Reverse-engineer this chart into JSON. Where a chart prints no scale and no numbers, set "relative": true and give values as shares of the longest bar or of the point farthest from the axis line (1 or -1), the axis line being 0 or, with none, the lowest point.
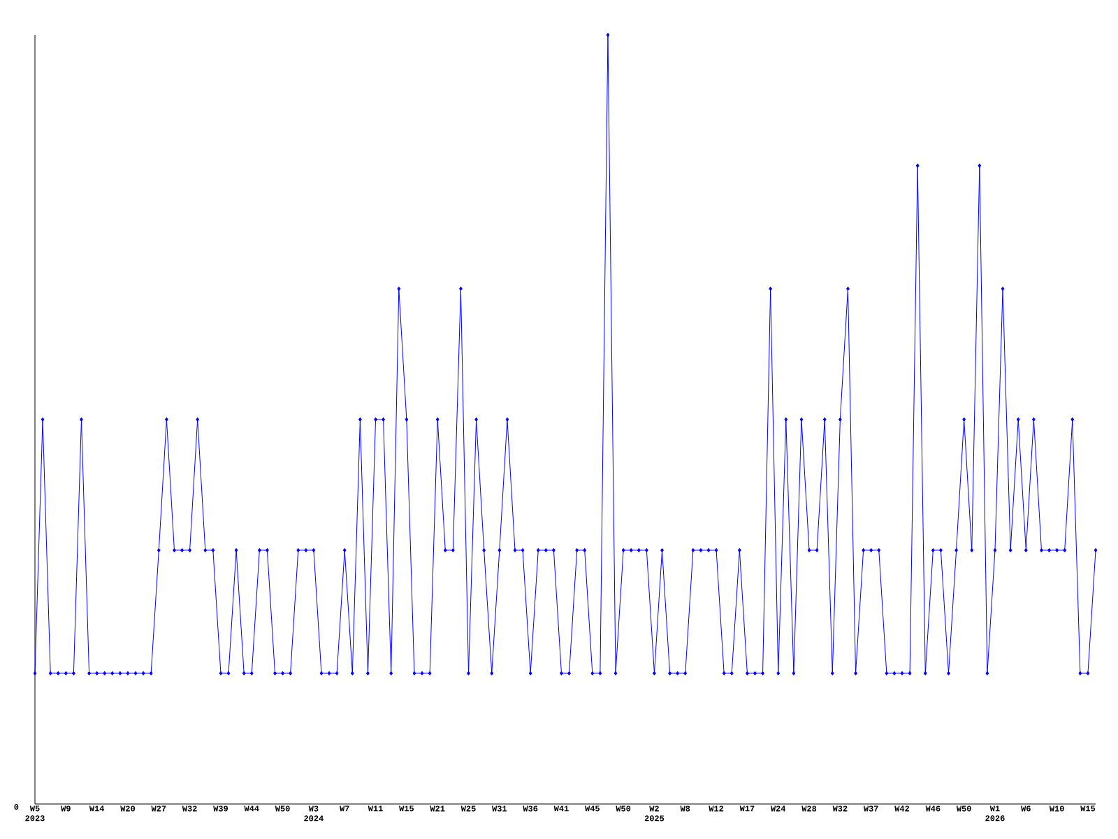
{
  "chart_data": {
    "type": "line",
    "relative": true,
    "marker": "diamond",
    "color": "#0000ff",
    "annotations": [
      "0"
    ],
    "categories": [
      "W5 2023",
      null,
      null,
      null,
      "W9",
      null,
      null,
      null,
      "W14",
      null,
      null,
      null,
      "W20",
      null,
      null,
      null,
      "W27",
      null,
      null,
      null,
      "W32",
      null,
      null,
      null,
      "W39",
      null,
      null,
      null,
      "W44",
      null,
      null,
      null,
      "W50",
      null,
      null,
      null,
      "W3 2024",
      null,
      null,
      null,
      "W7",
      null,
      null,
      null,
      "W11",
      null,
      null,
      null,
      "W15",
      null,
      null,
      null,
      "W21",
      null,
      null,
      null,
      "W25",
      null,
      null,
      null,
      "W31",
      null,
      null,
      null,
      "W36",
      null,
      null,
      null,
      "W41",
      null,
      null,
      null,
      "W45",
      null,
      null,
      null,
      "W50",
      null,
      null,
      null,
      "W2 2025",
      null,
      null,
      null,
      "W8",
      null,
      null,
      null,
      "W12",
      null,
      null,
      null,
      "W17",
      null,
      null,
      null,
      "W24",
      null,
      null,
      null,
      "W28",
      null,
      null,
      null,
      "W32",
      null,
      null,
      null,
      "W37",
      null,
      null,
      null,
      "W42",
      null,
      null,
      null,
      "W46",
      null,
      null,
      null,
      "W50",
      null,
      null,
      null,
      "W1 2026",
      null,
      null,
      null,
      "W6",
      null,
      null,
      null,
      "W10",
      null,
      null,
      null,
      "W15",
      null
    ],
    "values": [
      0.17,
      0.5,
      0.17,
      0.17,
      0.17,
      0.17,
      0.5,
      0.17,
      0.17,
      0.17,
      0.17,
      0.17,
      0.17,
      0.17,
      0.17,
      0.17,
      0.33,
      0.5,
      0.33,
      0.33,
      0.33,
      0.5,
      0.33,
      0.33,
      0.17,
      0.17,
      0.33,
      0.17,
      0.17,
      0.33,
      0.33,
      0.17,
      0.17,
      0.17,
      0.33,
      0.33,
      0.33,
      0.17,
      0.17,
      0.17,
      0.33,
      0.17,
      0.5,
      0.17,
      0.5,
      0.5,
      0.17,
      0.67,
      0.5,
      0.17,
      0.17,
      0.17,
      0.5,
      0.33,
      0.33,
      0.67,
      0.17,
      0.5,
      0.33,
      0.17,
      0.33,
      0.5,
      0.33,
      0.33,
      0.17,
      0.33,
      0.33,
      0.33,
      0.17,
      0.17,
      0.33,
      0.33,
      0.17,
      0.17,
      1,
      0.17,
      0.33,
      0.33,
      0.33,
      0.33,
      0.17,
      0.33,
      0.17,
      0.17,
      0.17,
      0.33,
      0.33,
      0.33,
      0.33,
      0.17,
      0.17,
      0.33,
      0.17,
      0.17,
      0.17,
      0.67,
      0.17,
      0.5,
      0.17,
      0.5,
      0.33,
      0.33,
      0.5,
      0.17,
      0.5,
      0.67,
      0.17,
      0.33,
      0.33,
      0.33,
      0.17,
      0.17,
      0.17,
      0.17,
      0.83,
      0.17,
      0.33,
      0.33,
      0.17,
      0.33,
      0.5,
      0.33,
      0.83,
      0.17,
      0.33,
      0.67,
      0.33,
      0.5,
      0.33,
      0.5,
      0.33,
      0.33,
      0.33,
      0.33,
      0.5,
      0.17,
      0.17,
      0.33
    ]
  }
}
